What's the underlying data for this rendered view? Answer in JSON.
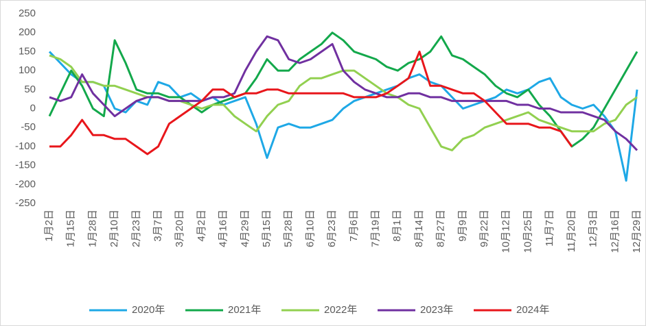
{
  "chart_data": {
    "type": "line",
    "categories": [
      "1月2日",
      null,
      "1月15日",
      null,
      "1月28日",
      null,
      "2月10日",
      null,
      "2月23日",
      null,
      "3月7日",
      null,
      "3月20日",
      null,
      "4月2日",
      null,
      "4月16日",
      null,
      "4月29日",
      null,
      "5月15日",
      null,
      "5月28日",
      null,
      "6月10日",
      null,
      "6月23日",
      null,
      "7月6日",
      null,
      "7月19日",
      null,
      "8月1日",
      null,
      "8月14日",
      null,
      "8月27日",
      null,
      "9月9日",
      null,
      "9月22日",
      null,
      "10月12日",
      null,
      "10月25日",
      null,
      "11月7日",
      null,
      "11月20日",
      null,
      "12月3日",
      null,
      "12月16日",
      null,
      "12月29日"
    ],
    "series": [
      {
        "name": "2020年",
        "color": "#1ea8e6",
        "values": [
          150,
          120,
          90,
          70,
          70,
          60,
          0,
          -10,
          20,
          10,
          70,
          60,
          30,
          40,
          20,
          30,
          10,
          20,
          30,
          -40,
          -130,
          -50,
          -40,
          -50,
          -50,
          -40,
          -30,
          0,
          20,
          30,
          40,
          50,
          60,
          80,
          90,
          70,
          60,
          30,
          0,
          10,
          20,
          30,
          50,
          40,
          50,
          70,
          80,
          30,
          10,
          0,
          10,
          -20,
          -60,
          -190,
          50
        ]
      },
      {
        "name": "2021年",
        "color": "#13a84b",
        "values": [
          -20,
          40,
          100,
          60,
          0,
          -20,
          180,
          120,
          50,
          40,
          40,
          30,
          30,
          10,
          -10,
          10,
          20,
          30,
          40,
          80,
          130,
          100,
          100,
          130,
          150,
          170,
          200,
          180,
          150,
          140,
          130,
          110,
          100,
          120,
          130,
          150,
          190,
          140,
          130,
          110,
          90,
          60,
          40,
          30,
          50,
          10,
          -20,
          -60,
          -100,
          -80,
          -50,
          0,
          50,
          100,
          150
        ]
      },
      {
        "name": "2022年",
        "color": "#92d050",
        "values": [
          140,
          130,
          110,
          70,
          70,
          60,
          60,
          50,
          40,
          30,
          30,
          20,
          20,
          10,
          0,
          10,
          10,
          -20,
          -40,
          -60,
          -20,
          10,
          20,
          60,
          80,
          80,
          90,
          100,
          100,
          80,
          60,
          40,
          30,
          10,
          0,
          -50,
          -100,
          -110,
          -80,
          -70,
          -50,
          -40,
          -30,
          -20,
          -10,
          -30,
          -40,
          -50,
          -60,
          -60,
          -60,
          -40,
          -30,
          10,
          30
        ]
      },
      {
        "name": "2023年",
        "color": "#7030a0",
        "values": [
          30,
          20,
          30,
          90,
          40,
          10,
          -20,
          0,
          20,
          30,
          30,
          20,
          20,
          20,
          20,
          30,
          30,
          40,
          100,
          150,
          190,
          180,
          130,
          120,
          130,
          150,
          170,
          100,
          70,
          50,
          40,
          30,
          30,
          40,
          40,
          30,
          30,
          20,
          20,
          20,
          20,
          20,
          20,
          10,
          10,
          0,
          0,
          -10,
          -10,
          -10,
          -20,
          -30,
          -60,
          -80,
          -110
        ]
      },
      {
        "name": "2024年",
        "color": "#e8161b",
        "values": [
          -100,
          -100,
          -70,
          -30,
          -70,
          -70,
          -80,
          -80,
          -100,
          -120,
          -100,
          -40,
          -20,
          0,
          20,
          50,
          50,
          30,
          40,
          40,
          50,
          50,
          40,
          40,
          40,
          40,
          40,
          40,
          30,
          30,
          30,
          40,
          60,
          80,
          150,
          60,
          60,
          50,
          40,
          40,
          20,
          -10,
          -40,
          -40,
          -40,
          -50,
          -50,
          -60,
          -100,
          null,
          null,
          null,
          null,
          null,
          null
        ]
      }
    ],
    "ylim": [
      -250,
      250
    ],
    "yticks": [
      -250,
      -200,
      -150,
      -100,
      -50,
      0,
      50,
      100,
      150,
      200,
      250
    ],
    "grid": false,
    "legend": "bottom"
  }
}
